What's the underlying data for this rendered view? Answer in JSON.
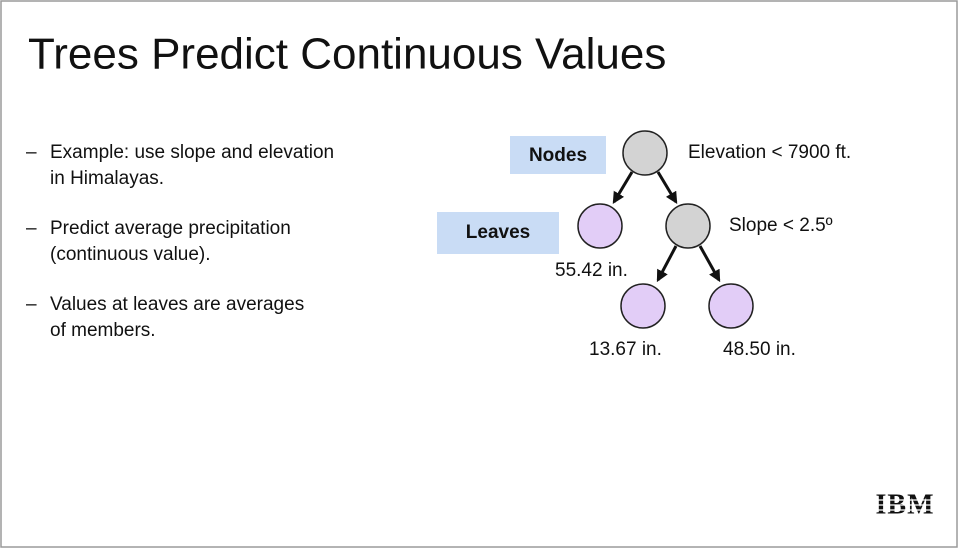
{
  "title": "Trees Predict Continuous Values",
  "bullets": [
    [
      "Example: use slope and elevation",
      "in Himalayas."
    ],
    [
      "Predict average precipitation",
      "(continuous value)."
    ],
    [
      "Values at leaves are averages",
      "of members."
    ]
  ],
  "diagram": {
    "nodes_label": "Nodes",
    "leaves_label": "Leaves",
    "root_condition": "Elevation < 7900 ft.",
    "child_condition": "Slope < 2.5º",
    "leaf_values": [
      "55.42 in.",
      "13.67 in.",
      "48.50 in."
    ]
  },
  "logo": "IBM"
}
